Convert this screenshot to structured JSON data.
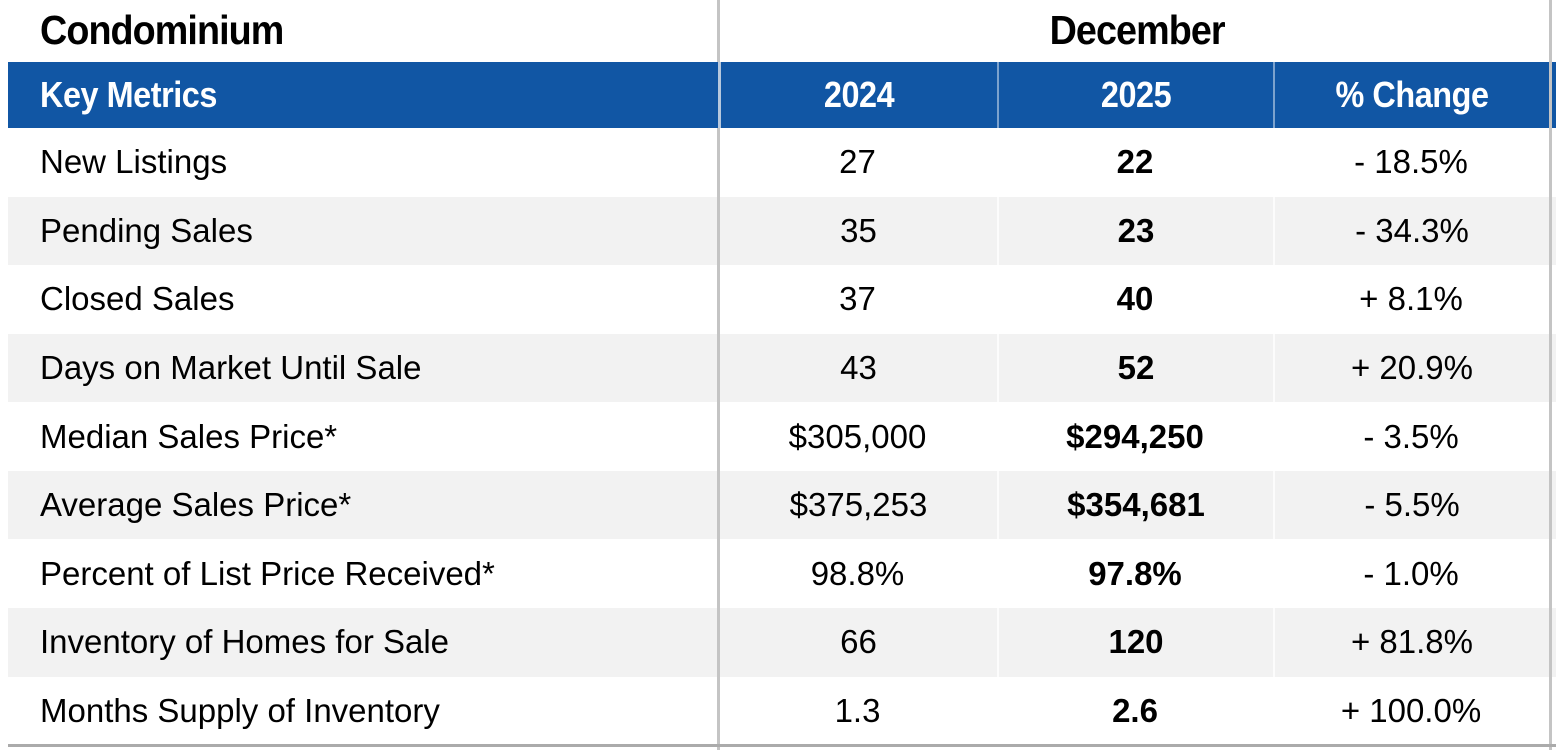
{
  "title": "Condominium",
  "period": "December",
  "columns": {
    "metrics": "Key Metrics",
    "y2024": "2024",
    "y2025": "2025",
    "change": "% Change"
  },
  "rows": [
    {
      "label": "New Listings",
      "y2024": "27",
      "y2025": "22",
      "change": "- 18.5%"
    },
    {
      "label": "Pending Sales",
      "y2024": "35",
      "y2025": "23",
      "change": "- 34.3%"
    },
    {
      "label": "Closed Sales",
      "y2024": "37",
      "y2025": "40",
      "change": "+ 8.1%"
    },
    {
      "label": "Days on Market Until Sale",
      "y2024": "43",
      "y2025": "52",
      "change": "+ 20.9%"
    },
    {
      "label": "Median Sales Price*",
      "y2024": "$305,000",
      "y2025": "$294,250",
      "change": "- 3.5%"
    },
    {
      "label": "Average Sales Price*",
      "y2024": "$375,253",
      "y2025": "$354,681",
      "change": "- 5.5%"
    },
    {
      "label": "Percent of List Price Received*",
      "y2024": "98.8%",
      "y2025": "97.8%",
      "change": "- 1.0%"
    },
    {
      "label": "Inventory of Homes for Sale",
      "y2024": "66",
      "y2025": "120",
      "change": "+ 81.8%"
    },
    {
      "label": "Months Supply of Inventory",
      "y2024": "1.3",
      "y2025": "2.6",
      "change": "+ 100.0%"
    }
  ],
  "colors": {
    "header_blue": "#1156A4",
    "header_text": "#FFFFFF",
    "stripe_gray": "#F2F2F2",
    "divider_gray": "#C4C4C4",
    "bottom_rule_gray": "#ABABAB",
    "text_black": "#000000"
  }
}
